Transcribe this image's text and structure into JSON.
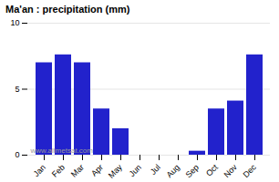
{
  "chart_data": {
    "type": "bar",
    "title": "Ma'an : precipitation (mm)",
    "categories": [
      "Jan",
      "Feb",
      "Mar",
      "Apr",
      "May",
      "Jun",
      "Jul",
      "Aug",
      "Sep",
      "Oct",
      "Nov",
      "Dec"
    ],
    "values": [
      7.0,
      7.6,
      7.0,
      3.5,
      2.0,
      0.0,
      0.0,
      0.0,
      0.3,
      3.5,
      4.1,
      7.6
    ],
    "color": "#2222cc",
    "ylim": [
      0,
      10
    ],
    "yticks": [
      0,
      5,
      10
    ],
    "grid": true,
    "annotation": "www.allmetsat.com"
  }
}
